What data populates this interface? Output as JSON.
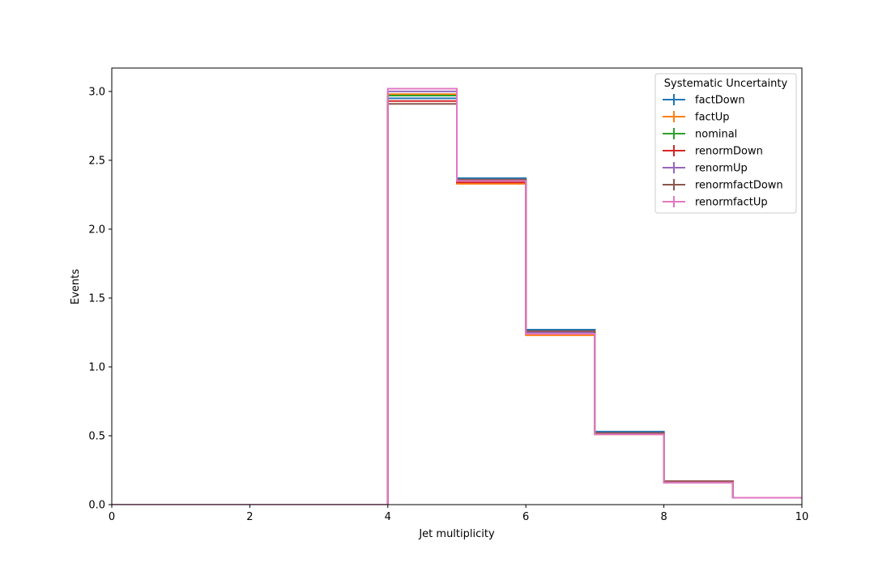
{
  "chart_data": {
    "type": "line",
    "drawstyle": "steps",
    "xlabel": "Jet multiplicity",
    "ylabel": "Events",
    "xlim": [
      0,
      10
    ],
    "ylim": [
      0,
      3.17
    ],
    "xticks": [
      0,
      2,
      4,
      6,
      8,
      10
    ],
    "xtick_labels": [
      "0",
      "2",
      "4",
      "6",
      "8",
      "10"
    ],
    "yticks": [
      0,
      0.5,
      1.0,
      1.5,
      2.0,
      2.5,
      3.0
    ],
    "ytick_labels": [
      "0.0",
      "0.5",
      "1.0",
      "1.5",
      "2.0",
      "2.5",
      "3.0"
    ],
    "grid": false,
    "legend": {
      "title": "Systematic Uncertainty",
      "position": "top-right"
    },
    "bin_edges": [
      0,
      1,
      2,
      3,
      4,
      5,
      6,
      7,
      8,
      9,
      10
    ],
    "series": [
      {
        "name": "factDown",
        "color": "#1f77b4",
        "values": [
          0,
          0,
          0,
          0,
          2.95,
          2.37,
          1.27,
          0.53,
          0.17,
          0.05
        ]
      },
      {
        "name": "factUp",
        "color": "#ff7f0e",
        "values": [
          0,
          0,
          0,
          0,
          2.98,
          2.33,
          1.23,
          0.51,
          0.16,
          0.05
        ]
      },
      {
        "name": "nominal",
        "color": "#2ca02c",
        "values": [
          0,
          0,
          0,
          0,
          2.97,
          2.35,
          1.25,
          0.52,
          0.17,
          0.05
        ]
      },
      {
        "name": "renormDown",
        "color": "#d62728",
        "values": [
          0,
          0,
          0,
          0,
          2.93,
          2.34,
          1.25,
          0.52,
          0.17,
          0.05
        ]
      },
      {
        "name": "renormUp",
        "color": "#9467bd",
        "values": [
          0,
          0,
          0,
          0,
          3.0,
          2.36,
          1.25,
          0.52,
          0.16,
          0.05
        ]
      },
      {
        "name": "renormfactDown",
        "color": "#8c564b",
        "values": [
          0,
          0,
          0,
          0,
          2.91,
          2.36,
          1.26,
          0.52,
          0.17,
          0.05
        ]
      },
      {
        "name": "renormfactUp",
        "color": "#e377c2",
        "values": [
          0,
          0,
          0,
          0,
          3.02,
          2.35,
          1.24,
          0.51,
          0.16,
          0.05
        ]
      }
    ]
  }
}
